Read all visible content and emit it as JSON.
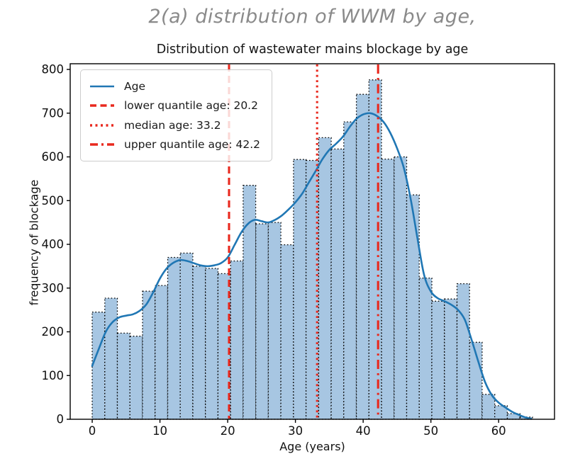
{
  "heading": {
    "text": "2(a) distribution of WWM by age,"
  },
  "chart_data": {
    "type": "histogram+kde",
    "title": "Distribution of wastewater mains blockage by age",
    "xlabel": "Age (years)",
    "ylabel": "frequency of blockage",
    "xlim": [
      -3.25,
      68.25
    ],
    "ylim": [
      0,
      813
    ],
    "x_ticks": [
      0,
      10,
      20,
      30,
      40,
      50,
      60
    ],
    "y_ticks": [
      0,
      100,
      200,
      300,
      400,
      500,
      600,
      700,
      800
    ],
    "grid": false,
    "bins": {
      "start": 0,
      "width": 1.8571,
      "values": [
        245,
        277,
        197,
        190,
        293,
        306,
        370,
        380,
        350,
        345,
        333,
        362,
        535,
        447,
        450,
        399,
        594,
        592,
        644,
        618,
        680,
        743,
        776,
        595,
        600,
        513,
        323,
        270,
        275,
        310,
        176,
        57,
        31,
        13,
        5
      ]
    },
    "kde": [
      [
        0,
        122
      ],
      [
        1,
        162
      ],
      [
        2,
        200
      ],
      [
        3,
        222
      ],
      [
        4,
        233
      ],
      [
        5,
        237
      ],
      [
        6,
        240
      ],
      [
        7,
        248
      ],
      [
        8,
        263
      ],
      [
        9,
        290
      ],
      [
        10,
        322
      ],
      [
        11,
        345
      ],
      [
        12,
        358
      ],
      [
        13,
        364
      ],
      [
        14,
        362
      ],
      [
        15,
        357
      ],
      [
        16,
        352
      ],
      [
        17,
        350
      ],
      [
        18,
        352
      ],
      [
        19,
        357
      ],
      [
        20,
        370
      ],
      [
        21,
        398
      ],
      [
        22,
        427
      ],
      [
        23,
        447
      ],
      [
        24,
        456
      ],
      [
        25,
        453
      ],
      [
        26,
        450
      ],
      [
        27,
        456
      ],
      [
        28,
        466
      ],
      [
        29,
        480
      ],
      [
        30,
        496
      ],
      [
        31,
        516
      ],
      [
        32,
        542
      ],
      [
        33,
        568
      ],
      [
        34,
        595
      ],
      [
        35,
        616
      ],
      [
        36,
        630
      ],
      [
        37,
        646
      ],
      [
        38,
        668
      ],
      [
        39,
        687
      ],
      [
        40,
        697
      ],
      [
        41,
        700
      ],
      [
        42,
        694
      ],
      [
        43,
        680
      ],
      [
        44,
        655
      ],
      [
        45,
        620
      ],
      [
        46,
        575
      ],
      [
        47,
        505
      ],
      [
        48,
        415
      ],
      [
        49,
        330
      ],
      [
        50,
        292
      ],
      [
        51,
        277
      ],
      [
        52,
        270
      ],
      [
        53,
        262
      ],
      [
        54,
        250
      ],
      [
        55,
        228
      ],
      [
        56,
        182
      ],
      [
        57,
        132
      ],
      [
        58,
        85
      ],
      [
        59,
        55
      ],
      [
        60,
        38
      ],
      [
        61,
        27
      ],
      [
        62,
        17
      ],
      [
        63,
        10
      ],
      [
        64,
        4
      ],
      [
        64.8,
        1
      ]
    ],
    "vlines": [
      {
        "name": "lower-quantile",
        "x": 20.2,
        "style": "dashed",
        "label": "lower quantile age: 20.2"
      },
      {
        "name": "median",
        "x": 33.2,
        "style": "dotted",
        "label": "median age: 33.2"
      },
      {
        "name": "upper-quantile",
        "x": 42.2,
        "style": "dashdot",
        "label": "upper quantile age: 42.2"
      }
    ],
    "legend": {
      "position": "upper-left",
      "entries": [
        {
          "label": "Age",
          "style": "solid",
          "color": "#2077b4"
        },
        {
          "label": "lower quantile age: 20.2",
          "style": "dashed",
          "color": "#e9291e"
        },
        {
          "label": "median age: 33.2",
          "style": "dotted",
          "color": "#e9291e"
        },
        {
          "label": "upper quantile age: 42.2",
          "style": "dashdot",
          "color": "#e9291e"
        }
      ]
    },
    "colors": {
      "hist_fill": "#a7c6e2",
      "hist_edge": "#000000",
      "kde_line": "#2077b4",
      "quantile_red": "#e9291e",
      "spine": "#000000",
      "heading_gray": "#8a8a8a",
      "tick_text": "#111111"
    }
  }
}
